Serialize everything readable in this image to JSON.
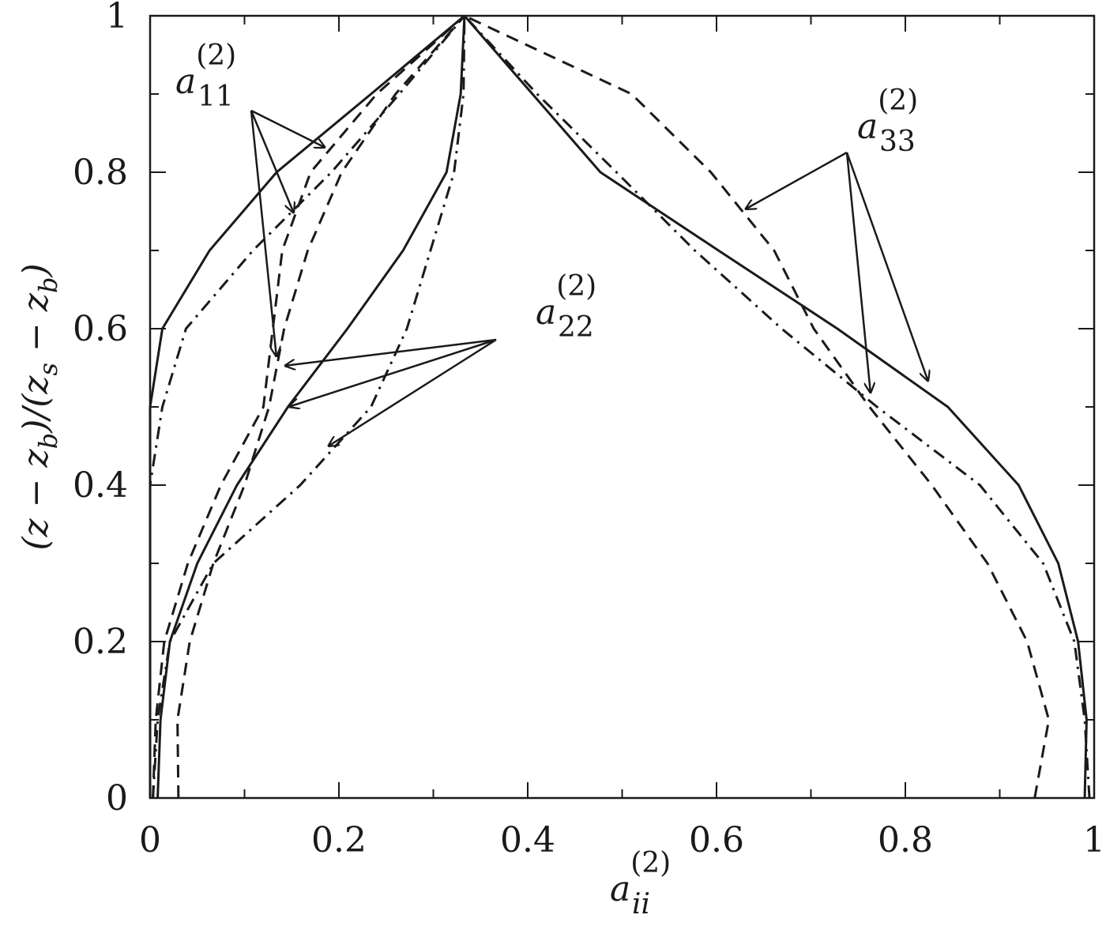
{
  "chart_data": {
    "type": "line",
    "xlabel": {
      "base": "a",
      "sub": "ii",
      "sup": "(2)"
    },
    "ylabel": {
      "parts": [
        "(z − z",
        "b",
        ")/(z",
        "s",
        " − z",
        "b",
        ")"
      ]
    },
    "xlim": [
      0,
      1
    ],
    "ylim": [
      0,
      1
    ],
    "xticks": [
      0,
      0.2,
      0.4,
      0.6,
      0.8,
      1
    ],
    "yticks": [
      0,
      0.2,
      0.4,
      0.6,
      0.8,
      1
    ],
    "y": [
      0,
      0.1,
      0.2,
      0.3,
      0.4,
      0.5,
      0.6,
      0.7,
      0.8,
      0.9,
      1
    ],
    "series": [
      {
        "color": "#1a1a1a",
        "style": "solid",
        "values": [
          0,
          0,
          0,
          0,
          0,
          0,
          0.013,
          0.063,
          0.134,
          0.234,
          0.333
        ]
      },
      {
        "color": "#1a1a1a",
        "style": "solid",
        "values": [
          0.008,
          0.011,
          0.021,
          0.05,
          0.092,
          0.146,
          0.209,
          0.268,
          0.314,
          0.329,
          0.333
        ]
      },
      {
        "color": "#1a1a1a",
        "style": "solid",
        "values": [
          0.99,
          0.992,
          0.983,
          0.962,
          0.92,
          0.845,
          0.728,
          0.602,
          0.477,
          0.405,
          0.333
        ]
      },
      {
        "color": "#1a1a1a",
        "style": "dashed",
        "values": [
          0.03,
          0.029,
          0.042,
          0.067,
          0.1,
          0.126,
          0.142,
          0.167,
          0.203,
          0.26,
          0.333
        ]
      },
      {
        "color": "#1a1a1a",
        "style": "dashed",
        "values": [
          0.003,
          0.006,
          0.015,
          0.04,
          0.075,
          0.12,
          0.13,
          0.14,
          0.17,
          0.24,
          0.333
        ]
      },
      {
        "color": "#1a1a1a",
        "style": "dashed",
        "values": [
          0.937,
          0.952,
          0.929,
          0.887,
          0.828,
          0.762,
          0.703,
          0.661,
          0.594,
          0.51,
          0.333
        ]
      },
      {
        "color": "#1a1a1a",
        "style": "dashdot",
        "values": [
          0,
          0,
          0,
          0,
          0,
          0.013,
          0.038,
          0.109,
          0.192,
          0.264,
          0.333
        ]
      },
      {
        "color": "#1a1a1a",
        "style": "dashdot",
        "values": [
          0.003,
          0.008,
          0.021,
          0.067,
          0.159,
          0.234,
          0.272,
          0.297,
          0.322,
          0.332,
          0.333
        ]
      },
      {
        "color": "#1a1a1a",
        "style": "dashdot",
        "values": [
          0.995,
          0.99,
          0.979,
          0.946,
          0.879,
          0.77,
          0.669,
          0.577,
          0.494,
          0.41,
          0.333
        ]
      }
    ],
    "annotations": [
      {
        "base": "a",
        "sub": "11",
        "sup": "(2)"
      },
      {
        "base": "a",
        "sub": "22",
        "sup": "(2)"
      },
      {
        "base": "a",
        "sub": "33",
        "sup": "(2)"
      }
    ]
  }
}
